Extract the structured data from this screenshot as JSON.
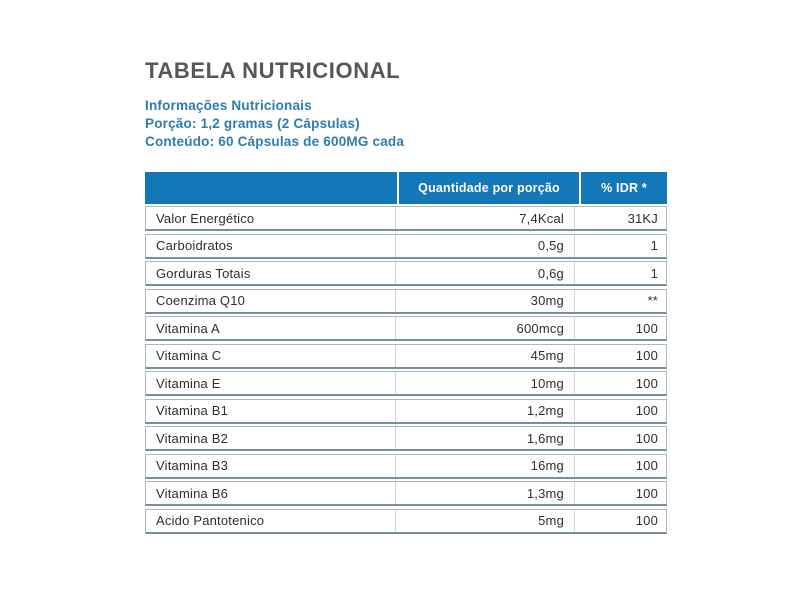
{
  "page": {
    "title": "TABELA NUTRICIONAL",
    "subtitle_lines": {
      "info": "Informações Nutricionais",
      "portion": "Porção: 1,2 gramas (2 Cápsulas)",
      "contents": "Conteúdo: 60 Cápsulas de 600MG cada"
    }
  },
  "table": {
    "header": {
      "item_label": "",
      "quantity_label": "Quantidade por porção",
      "idr_label": "% IDR *"
    },
    "rows": [
      {
        "label": "Valor Energético",
        "quantity": "7,4Kcal",
        "idr": "31KJ"
      },
      {
        "label": "Carboidratos",
        "quantity": "0,5g",
        "idr": "1"
      },
      {
        "label": "Gorduras Totais",
        "quantity": "0,6g",
        "idr": "1"
      },
      {
        "label": "Coenzima Q10",
        "quantity": "30mg",
        "idr": "**"
      },
      {
        "label": "Vitamina A",
        "quantity": "600mcg",
        "idr": "100"
      },
      {
        "label": "Vitamina C",
        "quantity": "45mg",
        "idr": "100"
      },
      {
        "label": "Vitamina E",
        "quantity": "10mg",
        "idr": "100"
      },
      {
        "label": "Vitamina B1",
        "quantity": "1,2mg",
        "idr": "100"
      },
      {
        "label": "Vitamina B2",
        "quantity": "1,6mg",
        "idr": "100"
      },
      {
        "label": "Vitamina B3",
        "quantity": "16mg",
        "idr": "100"
      },
      {
        "label": "Vitamina B6",
        "quantity": "1,3mg",
        "idr": "100"
      },
      {
        "label": "Acido Pantotenico",
        "quantity": "5mg",
        "idr": "100"
      }
    ]
  },
  "colors": {
    "header_bg": "#1478b8",
    "header_text": "#ffffff",
    "accent_blue": "#2e7cab",
    "title_gray": "#555759",
    "row_border": "#a9b9c1",
    "row_border_bottom": "#77909c",
    "body_text": "#2e2e2e"
  }
}
